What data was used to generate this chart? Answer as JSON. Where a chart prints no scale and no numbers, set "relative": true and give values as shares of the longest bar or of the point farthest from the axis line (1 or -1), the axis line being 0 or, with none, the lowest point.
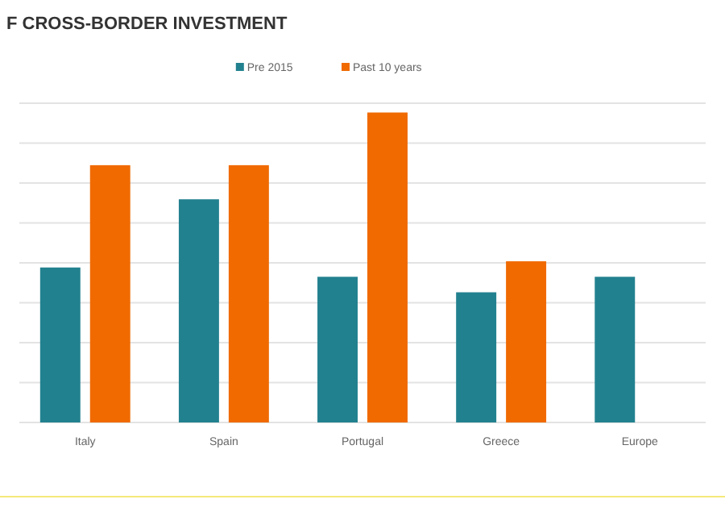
{
  "chart_data": {
    "type": "bar",
    "title": "F CROSS-BORDER INVESTMENT",
    "relative": true,
    "grid": true,
    "legend": "top",
    "categories": [
      "Italy",
      "Spain",
      "Portugal",
      "Greece",
      "Europe"
    ],
    "series": [
      {
        "name": "Pre 2015",
        "color": "#22818f",
        "values": [
          0.5,
          0.72,
          0.47,
          0.42,
          0.47
        ]
      },
      {
        "name": "Past 10 years",
        "color": "#f06a00",
        "values": [
          0.83,
          0.83,
          1,
          0.52,
          null
        ]
      }
    ]
  }
}
